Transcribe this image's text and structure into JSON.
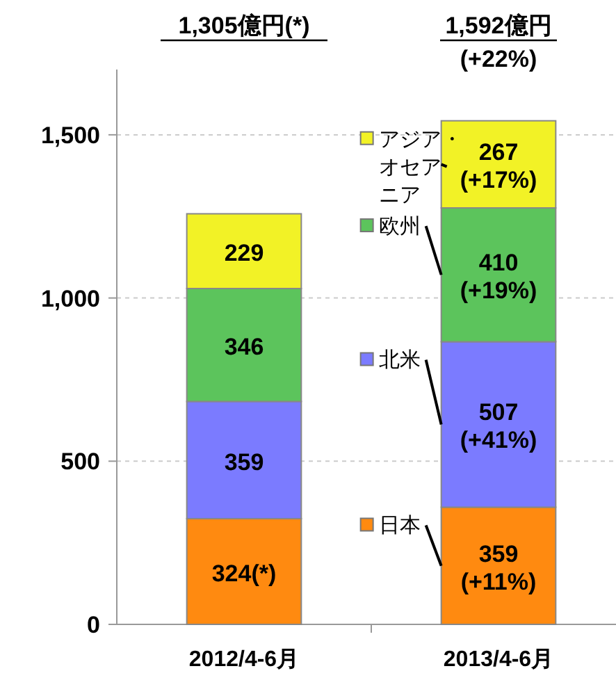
{
  "chart_data": {
    "type": "bar",
    "stacked": true,
    "categories": [
      "2012/4-6月",
      "2013/4-6月"
    ],
    "series": [
      {
        "name": "日本",
        "color": "#ff8a10",
        "values": [
          324,
          359
        ],
        "value_labels": [
          "324(*)",
          "359\n(+11%)"
        ]
      },
      {
        "name": "北米",
        "color": "#7b7bff",
        "values": [
          359,
          507
        ],
        "value_labels": [
          "359",
          "507\n(+41%)"
        ]
      },
      {
        "name": "欧州",
        "color": "#5cc45c",
        "values": [
          346,
          410
        ],
        "value_labels": [
          "346",
          "410\n(+19%)"
        ]
      },
      {
        "name": "アジア・オセアニア",
        "color": "#f2f226",
        "values": [
          229,
          267
        ],
        "value_labels": [
          "229",
          "267\n(+17%)"
        ]
      }
    ],
    "annotations": [
      "1,305億円(*)",
      "1,592億円\n(+22%)"
    ],
    "ylim": [
      0,
      1700
    ],
    "yticks": [
      0,
      {
        "value": 500,
        "label": "500"
      },
      {
        "value": 1000,
        "label": "1,000"
      },
      {
        "value": 1500,
        "label": "1,500"
      }
    ],
    "grid": "y",
    "legend": "center"
  }
}
